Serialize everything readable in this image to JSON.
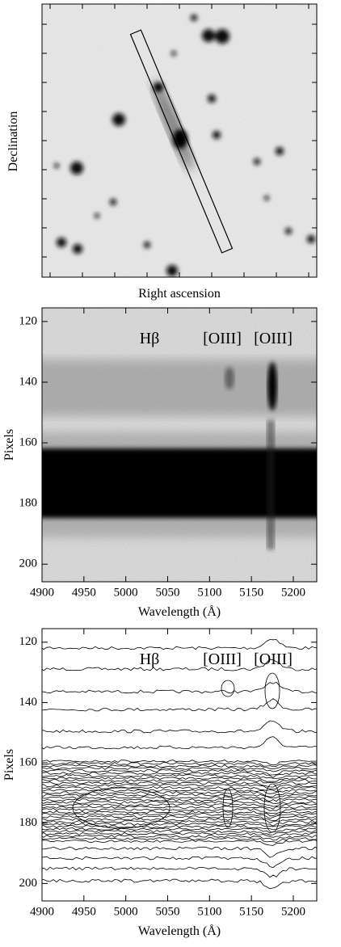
{
  "chart_data": [
    {
      "type": "image",
      "xlabel": "Right ascension",
      "ylabel": "Declination"
    },
    {
      "type": "spectrum",
      "xlabel": "Wavelength (Å)",
      "ylabel": "Pixels",
      "annotations": [
        "Hβ",
        "[OIII]",
        "[OIII]"
      ],
      "xlim": [
        4900,
        5228
      ],
      "ylim": [
        205.8,
        115.5
      ],
      "xticks": [
        4900,
        4950,
        5000,
        5050,
        5100,
        5150,
        5200
      ],
      "yticks": [
        120,
        140,
        160,
        180,
        200
      ]
    },
    {
      "type": "contour",
      "xlabel": "Wavelength (Å)",
      "ylabel": "Pixels",
      "annotations": [
        "Hβ",
        "[OIII]",
        "[OIII]"
      ],
      "xlim": [
        4900,
        5228
      ],
      "ylim": [
        205.8,
        115.5
      ],
      "xticks": [
        4900,
        4950,
        5000,
        5050,
        5100,
        5150,
        5200
      ],
      "yticks": [
        120,
        140,
        160,
        180,
        200
      ]
    }
  ]
}
